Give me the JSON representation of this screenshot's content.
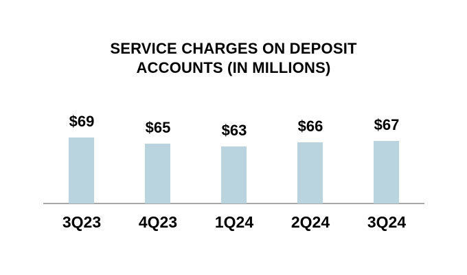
{
  "title": {
    "lines": [
      "SERVICE CHARGES ON DEPOSIT",
      "ACCOUNTS (IN MILLIONS)"
    ]
  },
  "chart_data": {
    "type": "bar",
    "title": "SERVICE CHARGES ON DEPOSIT ACCOUNTS (IN MILLIONS)",
    "categories": [
      "3Q23",
      "4Q23",
      "1Q24",
      "2Q24",
      "3Q24"
    ],
    "values": [
      69,
      65,
      63,
      66,
      67
    ],
    "value_labels": [
      "$69",
      "$65",
      "$63",
      "$66",
      "$67"
    ],
    "xlabel": "",
    "ylabel": "",
    "ylim": [
      25,
      115
    ],
    "grid": false,
    "legend": false,
    "colors": {
      "bar_fill": "#B9D3DF",
      "axis_line": "#A6A6A6",
      "text": "#000000",
      "background": "#FFFFFF"
    }
  }
}
